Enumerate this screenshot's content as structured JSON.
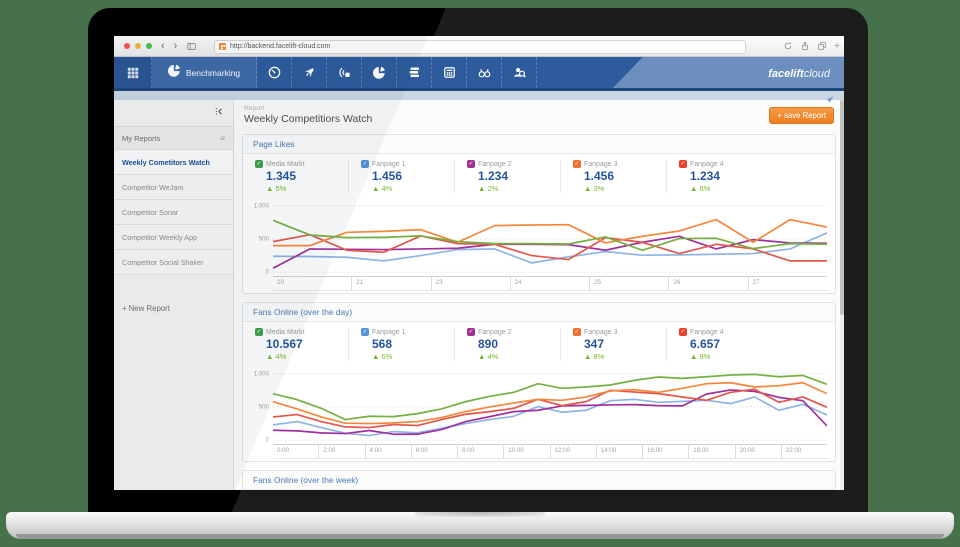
{
  "page_background": "#47714A",
  "browser": {
    "url": "http://backend.facelift-cloud.com",
    "traffic_lights": [
      "#f4564e",
      "#f5b63b",
      "#43c645"
    ]
  },
  "navbar": {
    "active_label": "Benchmarking",
    "brand_bold": "facelift",
    "brand_light": "cloud",
    "icons": [
      "apps-grid",
      "pie-chart",
      "gauge",
      "rocket",
      "broadcast",
      "pie-chart",
      "stack",
      "calculator",
      "binoculars",
      "user-search",
      "paper-plane"
    ]
  },
  "sidebar": {
    "header": "My Reports",
    "items": [
      {
        "label": "Weekly Cometitors Watch",
        "active": true
      },
      {
        "label": "Competitor WeJam",
        "active": false
      },
      {
        "label": "Competitor Sonar",
        "active": false
      },
      {
        "label": "Competitor Weekly App",
        "active": false
      },
      {
        "label": "Competitor Social Shaker",
        "active": false
      }
    ],
    "new_report": "+ New Report"
  },
  "report": {
    "breadcrumb": "Report",
    "title": "Weekly Competitiors Watch",
    "save_button": "+ save Report"
  },
  "panels": [
    {
      "title": "Page Likes",
      "legend": [
        {
          "name": "Media Markt",
          "value": "1.345",
          "change": "5%",
          "color": "#3ea44a"
        },
        {
          "name": "Fanpage 1",
          "value": "1.456",
          "change": "4%",
          "color": "#4f94d8"
        },
        {
          "name": "Fanpage 2",
          "value": "1.234",
          "change": "2%",
          "color": "#a0309a"
        },
        {
          "name": "Fanpage 3",
          "value": "1.456",
          "change": "3%",
          "color": "#f26c2c"
        },
        {
          "name": "Fanpage 4",
          "value": "1.234",
          "change": "6%",
          "color": "#e8402d"
        }
      ],
      "chart": {
        "type": "line",
        "ylim": [
          0,
          1000
        ],
        "y_ticks": [
          "1.000",
          "500",
          "0"
        ],
        "x_labels": [
          "20",
          "21",
          "23",
          "24",
          "25",
          "26",
          "27"
        ],
        "series": [
          {
            "name": "Fanpage 1",
            "color": "#8fb4e3",
            "values": [
              240,
              235,
              225,
              170,
              250,
              340,
              350,
              140,
              230,
              310,
              255,
              260,
              270,
              280,
              350,
              590
            ]
          },
          {
            "name": "Fanpage 2",
            "color": "#a0309a",
            "values": [
              60,
              350,
              345,
              340,
              350,
              360,
              420,
              420,
              415,
              330,
              450,
              540,
              350,
              490,
              440,
              435
            ]
          },
          {
            "name": "Fanpage 4",
            "color": "#e2574c",
            "values": [
              460,
              565,
              330,
              300,
              545,
              430,
              420,
              250,
              190,
              520,
              450,
              280,
              420,
              350,
              170,
              170
            ]
          },
          {
            "name": "Fanpage 3",
            "color": "#f6863c",
            "values": [
              400,
              400,
              600,
              615,
              640,
              450,
              700,
              710,
              715,
              440,
              540,
              620,
              790,
              450,
              790,
              680
            ]
          },
          {
            "name": "Media Markt",
            "color": "#76b043",
            "values": [
              780,
              560,
              520,
              525,
              545,
              460,
              430,
              430,
              425,
              530,
              330,
              505,
              510,
              355,
              430,
              420
            ]
          }
        ]
      }
    },
    {
      "title": "Fans Online (over the day)",
      "legend": [
        {
          "name": "Media Markt",
          "value": "10.567",
          "change": "4%",
          "color": "#3ea44a"
        },
        {
          "name": "Fanpage 1",
          "value": "568",
          "change": "6%",
          "color": "#4f94d8"
        },
        {
          "name": "Fanpage 2",
          "value": "890",
          "change": "4%",
          "color": "#a0309a"
        },
        {
          "name": "Fanpage 3",
          "value": "347",
          "change": "8%",
          "color": "#f26c2c"
        },
        {
          "name": "Fanpage 4",
          "value": "6.657",
          "change": "9%",
          "color": "#e8402d"
        }
      ],
      "chart": {
        "type": "line",
        "ylim": [
          0,
          1000
        ],
        "y_ticks": [
          "1.000",
          "500",
          "0"
        ],
        "x_labels": [
          "0:00",
          "2:00",
          "4:00",
          "6:00",
          "8:00",
          "10:00",
          "12:00",
          "14:00",
          "16:00",
          "18:00",
          "20:00",
          "22:00"
        ],
        "series": [
          {
            "name": "Fanpage 1",
            "color": "#8fb4e3",
            "values": [
              230,
              280,
              190,
              105,
              70,
              130,
              110,
              180,
              250,
              310,
              360,
              505,
              420,
              450,
              595,
              615,
              570,
              585,
              600,
              550,
              650,
              450,
              540,
              380
            ]
          },
          {
            "name": "Fanpage 2",
            "color": "#a0309a",
            "values": [
              150,
              140,
              110,
              100,
              145,
              90,
              90,
              160,
              280,
              355,
              430,
              450,
              515,
              525,
              530,
              535,
              520,
              515,
              695,
              755,
              735,
              645,
              595,
              215
            ]
          },
          {
            "name": "Fanpage 4",
            "color": "#e2574c",
            "values": [
              350,
              385,
              280,
              200,
              190,
              235,
              220,
              310,
              390,
              430,
              480,
              615,
              520,
              580,
              750,
              725,
              700,
              650,
              600,
              720,
              765,
              570,
              650,
              495
            ]
          },
          {
            "name": "Fanpage 3",
            "color": "#f6863c",
            "values": [
              580,
              470,
              350,
              255,
              250,
              260,
              280,
              340,
              430,
              500,
              560,
              615,
              600,
              650,
              740,
              760,
              720,
              780,
              850,
              865,
              800,
              820,
              865,
              700
            ]
          },
          {
            "name": "Media Markt",
            "color": "#76b043",
            "values": [
              700,
              610,
              480,
              310,
              360,
              355,
              400,
              470,
              580,
              660,
              720,
              850,
              780,
              800,
              830,
              900,
              950,
              930,
              955,
              980,
              990,
              955,
              975,
              840
            ]
          }
        ]
      }
    },
    {
      "title": "Fans Online (over the week)",
      "legend": [],
      "chart": null
    }
  ]
}
